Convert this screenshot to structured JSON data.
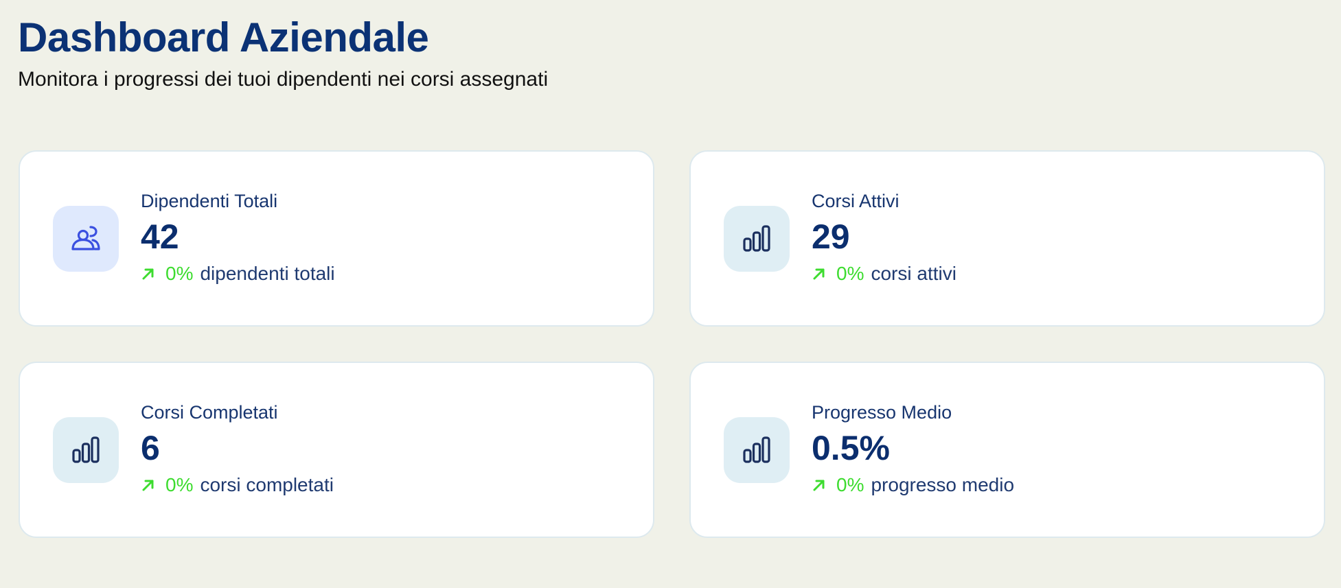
{
  "header": {
    "title": "Dashboard Aziendale",
    "subtitle": "Monitora i progressi dei tuoi dipendenti nei corsi assegnati"
  },
  "colors": {
    "page_background": "#f0f1e8",
    "title": "#0b3275",
    "trend_positive": "#3ddc2f",
    "icon_tile_default": "#dfeef4",
    "icon_tile_employees": "#dfe9fd",
    "icon_employees": "#3b50e0",
    "icon_chart": "#1b2f5e"
  },
  "cards": [
    {
      "label": "Dipendenti Totali",
      "value": "42",
      "trend_pct": "0%",
      "trend_text": "dipendenti totali",
      "icon": "users-icon"
    },
    {
      "label": "Corsi Attivi",
      "value": "29",
      "trend_pct": "0%",
      "trend_text": "corsi attivi",
      "icon": "bar-chart-icon"
    },
    {
      "label": "Corsi Completati",
      "value": "6",
      "trend_pct": "0%",
      "trend_text": "corsi completati",
      "icon": "bar-chart-icon"
    },
    {
      "label": "Progresso Medio",
      "value": "0.5%",
      "trend_pct": "0%",
      "trend_text": "progresso medio",
      "icon": "bar-chart-icon"
    }
  ]
}
